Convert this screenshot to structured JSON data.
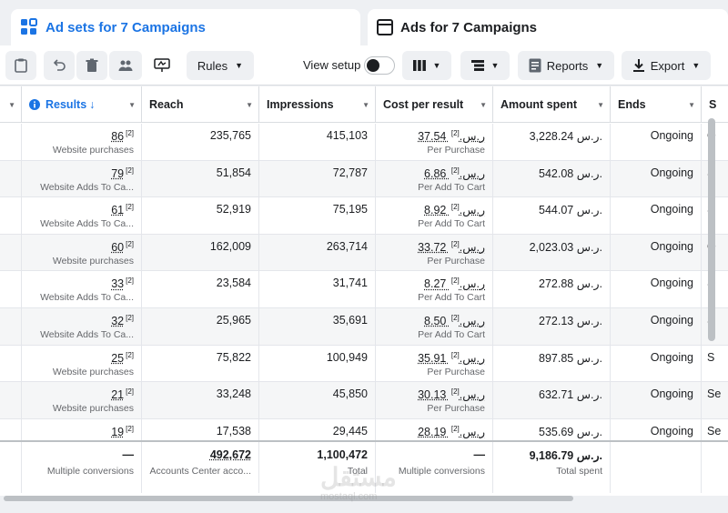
{
  "tabs": {
    "active_label": "Ad sets for 7 Campaigns",
    "inactive_label": "Ads for 7 Campaigns"
  },
  "toolbar": {
    "rules_label": "Rules",
    "view_setup_label": "View setup",
    "reports_label": "Reports",
    "export_label": "Export"
  },
  "columns": {
    "results": "Results",
    "reach": "Reach",
    "impressions": "Impressions",
    "cost_per_result": "Cost per result",
    "amount_spent": "Amount spent",
    "ends": "Ends",
    "next": "S"
  },
  "rows": [
    {
      "results": "86",
      "results_sub": "Website purchases",
      "reach": "235,765",
      "impressions": "415,103",
      "cpr": "37.54 ر.س.",
      "cpr_sub": "Per Purchase",
      "spent": "3,228.24 ر.س.",
      "ends": "Ongoing",
      "next": "O"
    },
    {
      "results": "79",
      "results_sub": "Website Adds To Ca...",
      "reach": "51,854",
      "impressions": "72,787",
      "cpr": "6.86 ر.س.",
      "cpr_sub": "Per Add To Cart",
      "spent": "542.08 ر.س.",
      "ends": "Ongoing",
      "next": "S"
    },
    {
      "results": "61",
      "results_sub": "Website Adds To Ca...",
      "reach": "52,919",
      "impressions": "75,195",
      "cpr": "8.92 ر.س.",
      "cpr_sub": "Per Add To Cart",
      "spent": "544.07 ر.س.",
      "ends": "Ongoing",
      "next": "S"
    },
    {
      "results": "60",
      "results_sub": "Website purchases",
      "reach": "162,009",
      "impressions": "263,714",
      "cpr": "33.72 ر.س.",
      "cpr_sub": "Per Purchase",
      "spent": "2,023.03 ر.س.",
      "ends": "Ongoing",
      "next": "O"
    },
    {
      "results": "33",
      "results_sub": "Website Adds To Ca...",
      "reach": "23,584",
      "impressions": "31,741",
      "cpr": "8.27 ر.س.",
      "cpr_sub": "Per Add To Cart",
      "spent": "272.88 ر.س.",
      "ends": "Ongoing",
      "next": "S"
    },
    {
      "results": "32",
      "results_sub": "Website Adds To Ca...",
      "reach": "25,965",
      "impressions": "35,691",
      "cpr": "8.50 ر.س.",
      "cpr_sub": "Per Add To Cart",
      "spent": "272.13 ر.س.",
      "ends": "Ongoing",
      "next": "S"
    },
    {
      "results": "25",
      "results_sub": "Website purchases",
      "reach": "75,822",
      "impressions": "100,949",
      "cpr": "35.91 ر.س.",
      "cpr_sub": "Per Purchase",
      "spent": "897.85 ر.س.",
      "ends": "Ongoing",
      "next": "S"
    },
    {
      "results": "21",
      "results_sub": "Website purchases",
      "reach": "33,248",
      "impressions": "45,850",
      "cpr": "30.13 ر.س.",
      "cpr_sub": "Per Purchase",
      "spent": "632.71 ر.س.",
      "ends": "Ongoing",
      "next": "Se"
    },
    {
      "results": "19",
      "results_sub": "",
      "reach": "17,538",
      "impressions": "29,445",
      "cpr": "28.19 ر.س.",
      "cpr_sub": "",
      "spent": "535.69 ر.س.",
      "ends": "Ongoing",
      "next": "Se"
    }
  ],
  "totals": {
    "results": "—",
    "results_sub": "Multiple conversions",
    "reach": "492,672",
    "reach_sub": "Accounts Center acco...",
    "impressions": "1,100,472",
    "impressions_sub": "Total",
    "cpr": "—",
    "cpr_sub": "Multiple conversions",
    "spent": "9,186.79 ر.س.",
    "spent_sub": "Total spent"
  },
  "footnote_marker": "[2]",
  "watermark": "مستقل",
  "watermark_sub": "mostaql.com",
  "colors": {
    "accent": "#1b74e4",
    "text": "#1c1e21",
    "muted": "#65676b"
  }
}
